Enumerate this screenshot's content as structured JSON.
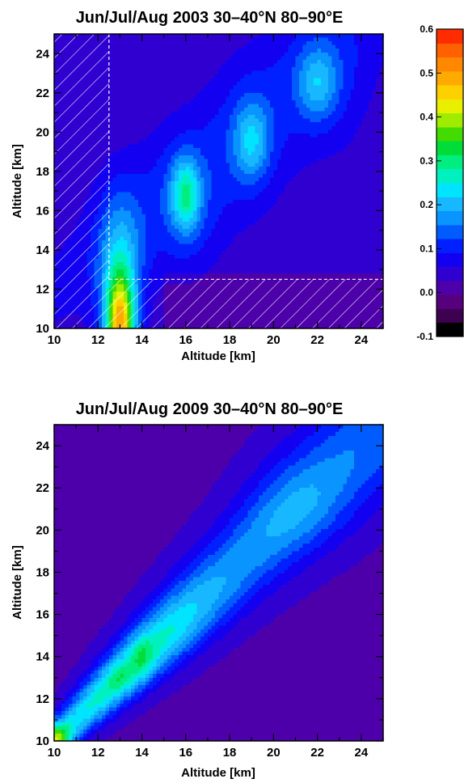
{
  "chart_data": [
    {
      "type": "heatmap",
      "title": "Jun/Jul/Aug 2003  30–40°N   80–90°E",
      "xlabel": "Altitude [km]",
      "ylabel": "Altitude [km]",
      "xlim": [
        10,
        25
      ],
      "ylim": [
        10,
        25
      ],
      "xticks": [
        "10",
        "12",
        "14",
        "16",
        "18",
        "20",
        "22",
        "24"
      ],
      "yticks": [
        "10",
        "12",
        "14",
        "16",
        "18",
        "20",
        "22",
        "24"
      ],
      "hatched_regions": [
        {
          "x": [
            10,
            12.5
          ],
          "y": [
            10,
            25
          ]
        },
        {
          "x": [
            12.5,
            25
          ],
          "y": [
            10,
            12.5
          ]
        }
      ],
      "peaks": [
        {
          "x": 13,
          "y": 10,
          "value": 0.4
        },
        {
          "x": 13,
          "y": 12.5,
          "value": 0.3
        },
        {
          "x": 16,
          "y": 16.8,
          "value": 0.2
        },
        {
          "x": 19,
          "y": 19.5,
          "value": 0.15
        },
        {
          "x": 22,
          "y": 22.5,
          "value": 0.13
        }
      ]
    },
    {
      "type": "heatmap",
      "title": "Jun/Jul/Aug 2009  30–40°N   80–90°E",
      "xlabel": "Altitude [km]",
      "ylabel": "Altitude [km]",
      "xlim": [
        10,
        25
      ],
      "ylim": [
        10,
        25
      ],
      "xticks": [
        "10",
        "12",
        "14",
        "16",
        "18",
        "20",
        "22",
        "24"
      ],
      "yticks": [
        "10",
        "12",
        "14",
        "16",
        "18",
        "20",
        "22",
        "24"
      ],
      "peaks": [
        {
          "x": 10,
          "y": 10,
          "value": 0.36
        },
        {
          "x": 10.8,
          "y": 11,
          "value": 0.27
        },
        {
          "x": 13,
          "y": 13,
          "value": 0.24
        },
        {
          "x": 14,
          "y": 14,
          "value": 0.22
        },
        {
          "x": 20.5,
          "y": 21,
          "value": 0.16
        }
      ]
    }
  ],
  "colorbar": {
    "range": [
      -0.1,
      0.6
    ],
    "ticks": [
      "-0.1",
      "0.0",
      "0.1",
      "0.2",
      "0.3",
      "0.4",
      "0.5",
      "0.6"
    ],
    "colors": [
      "#000000",
      "#3e0050",
      "#56007e",
      "#4d00aa",
      "#2f00d0",
      "#1400f0",
      "#0020ff",
      "#005cff",
      "#0a94ff",
      "#17b8ff",
      "#00e4ff",
      "#00f0c0",
      "#00ee80",
      "#00dc38",
      "#44dc00",
      "#a0ec00",
      "#e8f000",
      "#ffd000",
      "#ffaa00",
      "#ff8800",
      "#ff6000",
      "#ff2c00"
    ]
  }
}
